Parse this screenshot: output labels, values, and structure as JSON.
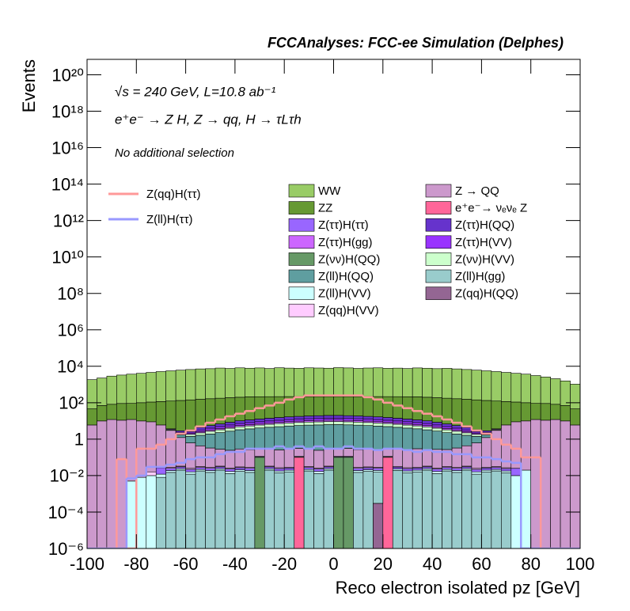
{
  "chart_data": {
    "type": "stacked-histogram",
    "title": "FCCAnalyses: FCC-ee Simulation (Delphes)",
    "annotations": [
      "√s = 240 GeV, L=10.8 ab⁻¹",
      "e⁺e⁻ → Z H, Z → qq, H → τLτh",
      "No additional selection"
    ],
    "xlabel": "Reco electron isolated pz [GeV]",
    "ylabel": "Events",
    "log_y": true,
    "grid": false,
    "xlim": [
      -100,
      100
    ],
    "xticks": [
      -100,
      -80,
      -60,
      -40,
      -20,
      0,
      20,
      40,
      60,
      80,
      100
    ],
    "ylim": [
      1e-06,
      7e+20
    ],
    "yticks": [
      {
        "value": 1e-06,
        "label": "10⁻⁶"
      },
      {
        "value": 0.0001,
        "label": "10⁻⁴"
      },
      {
        "value": 0.01,
        "label": "10⁻²"
      },
      1,
      {
        "value": 100,
        "label": "10²"
      },
      {
        "value": 10000,
        "label": "10⁴"
      },
      {
        "value": 1000000.0,
        "label": "10⁶"
      },
      {
        "value": 100000000.0,
        "label": "10⁸"
      },
      {
        "value": 10000000000.0,
        "label": "10¹⁰"
      },
      {
        "value": 1000000000000.0,
        "label": "10¹²"
      },
      {
        "value": 100000000000000.0,
        "label": "10¹⁴"
      },
      {
        "value": 1e+16,
        "label": "10¹⁶"
      },
      {
        "value": 1e+18,
        "label": "10¹⁸"
      },
      {
        "value": 1e+20,
        "label": "10²⁰"
      }
    ],
    "bins": [
      -100,
      -96,
      -92,
      -88,
      -84,
      -80,
      -76,
      -72,
      -68,
      -64,
      -60,
      -56,
      -52,
      -48,
      -44,
      -40,
      -36,
      -32,
      -28,
      -24,
      -20,
      -16,
      -12,
      -8,
      -4,
      0,
      4,
      8,
      12,
      16,
      20,
      24,
      28,
      32,
      36,
      40,
      44,
      48,
      52,
      56,
      60,
      64,
      68,
      72,
      76,
      80,
      84,
      88,
      92,
      96,
      100
    ],
    "series": [
      {
        "name": "Z(qq)H(QQ)",
        "color": "#946693",
        "histtype": "stepfilled",
        "values": [
          0,
          0,
          0,
          0,
          0,
          0,
          0,
          0,
          0,
          0,
          0,
          0,
          0,
          0,
          0,
          0,
          0,
          0,
          0,
          0,
          0,
          0,
          0,
          0,
          0,
          0,
          0,
          0,
          0,
          0.0003,
          0,
          0,
          0,
          0,
          0,
          0,
          0,
          0,
          0,
          0,
          0,
          0,
          0,
          0,
          0,
          0,
          0,
          0,
          0,
          0
        ]
      },
      {
        "name": "Z(νν)H(QQ)",
        "color": "#669966",
        "histtype": "stepfilled",
        "values": [
          0,
          0,
          0,
          0,
          0,
          0,
          0,
          0,
          0,
          0,
          0,
          0,
          0,
          0,
          0,
          0,
          0,
          0.1,
          0,
          0,
          0,
          0,
          0,
          0,
          0,
          0.1,
          0.1,
          0,
          0,
          0,
          0,
          0,
          0,
          0,
          0,
          0,
          0,
          0,
          0,
          0,
          0,
          0,
          0,
          0,
          0,
          0,
          0,
          0,
          0,
          0
        ]
      },
      {
        "name": "e⁺e⁻→ νₑνₑ Z",
        "color": "#ff6699",
        "histtype": "stepfilled",
        "values": [
          0,
          0,
          0,
          0,
          0,
          0,
          0,
          0,
          0,
          0,
          0,
          0,
          0,
          0,
          0,
          0,
          0,
          0,
          0,
          0,
          0,
          0.1,
          0,
          0,
          0,
          0,
          0,
          0,
          0,
          0,
          0.1,
          0,
          0,
          0,
          0,
          0,
          0,
          0,
          0,
          0,
          0,
          0,
          0,
          0,
          0,
          0,
          0,
          0,
          0,
          0
        ]
      },
      {
        "name": "Z(ll)H(gg)",
        "color": "#99cccc",
        "histtype": "stepfilled",
        "values": [
          0,
          0,
          0,
          0,
          0,
          0,
          0,
          0.008,
          0.015,
          0.02,
          0.012,
          0.018,
          0.015,
          0.02,
          0.013,
          0.017,
          0.015,
          0,
          0.02,
          0.014,
          0.016,
          0,
          0.018,
          0.013,
          0.02,
          0,
          0,
          0.015,
          0.017,
          0.015,
          0,
          0.019,
          0.014,
          0.016,
          0.02,
          0.013,
          0.018,
          0.015,
          0.02,
          0.012,
          0.016,
          0.018,
          0.014,
          0,
          0,
          0,
          0,
          0,
          0,
          0
        ]
      },
      {
        "name": "Z(ll)H(VV)",
        "color": "#ccffff",
        "histtype": "stepfilled",
        "values": [
          0,
          0,
          0,
          0,
          0.005,
          0.008,
          0.01,
          0.004,
          0.004,
          0.004,
          0.004,
          0.004,
          0.004,
          0.004,
          0.004,
          0.004,
          0.004,
          0.004,
          0.004,
          0.004,
          0.004,
          0.004,
          0.004,
          0.004,
          0.004,
          0.004,
          0.004,
          0.004,
          0.004,
          0.004,
          0.004,
          0.004,
          0.004,
          0.004,
          0.004,
          0.004,
          0.004,
          0.004,
          0.004,
          0.004,
          0.004,
          0.004,
          0.004,
          0.01,
          0.02,
          0,
          0,
          0,
          0,
          0
        ]
      },
      {
        "name": "Z(ττ)H(ττ)",
        "color": "#9966ff",
        "histtype": "stepfilled",
        "values": [
          0,
          0,
          0,
          0,
          0,
          0,
          0,
          0.015,
          0.006,
          0.006,
          0.006,
          0.006,
          0.006,
          0.006,
          0.006,
          0.006,
          0.006,
          0.006,
          0.006,
          0.006,
          0.006,
          0.006,
          0.006,
          0.006,
          0.006,
          0.006,
          0.006,
          0.006,
          0.006,
          0.006,
          0.006,
          0.006,
          0.006,
          0.006,
          0.006,
          0.006,
          0.006,
          0.006,
          0.006,
          0.006,
          0.006,
          0.006,
          0.006,
          0.015,
          0,
          0,
          0,
          0,
          0,
          0
        ]
      },
      {
        "name": "Z(qq)H(VV)",
        "color": "#ffccff",
        "histtype": "stepfilled",
        "values": [
          0,
          0,
          0,
          0,
          0,
          0,
          0.006,
          0,
          0.003,
          0.003,
          0.003,
          0.003,
          0.003,
          0.003,
          0.003,
          0.003,
          0.003,
          0.003,
          0.003,
          0.003,
          0.003,
          0.003,
          0.003,
          0.003,
          0.003,
          0.003,
          0.003,
          0.003,
          0.003,
          0.003,
          0.003,
          0.003,
          0.003,
          0.003,
          0.003,
          0.003,
          0.003,
          0.003,
          0.003,
          0.003,
          0.003,
          0.003,
          0.003,
          0,
          0,
          0,
          0,
          0,
          0,
          0
        ]
      },
      {
        "name": "Z → QQ",
        "color": "#cc99cc",
        "histtype": "stepfilled",
        "values": [
          6,
          10,
          12,
          11,
          12,
          10,
          9,
          6,
          3,
          1.2,
          0.6,
          0.4,
          0.3,
          0.25,
          0.22,
          0.26,
          0.24,
          0.2,
          0.27,
          0.23,
          0.25,
          0.2,
          0.26,
          0.22,
          0.25,
          0.2,
          0.2,
          0.24,
          0.26,
          0.22,
          0.2,
          0.25,
          0.23,
          0.27,
          0.22,
          0.25,
          0.24,
          0.3,
          0.4,
          0.6,
          1.2,
          3,
          6,
          9,
          10,
          12,
          11,
          12,
          10,
          6
        ]
      },
      {
        "name": "Z(ll)H(QQ)",
        "color": "#5f9ea0",
        "histtype": "stepfilled",
        "values": [
          0,
          0,
          0,
          0,
          0,
          0,
          0,
          0,
          0.2,
          0.5,
          0.8,
          1.2,
          1.6,
          2.0,
          2.5,
          3.0,
          3.4,
          3.8,
          4.2,
          4.6,
          5.0,
          5.3,
          5.6,
          5.8,
          6.0,
          6.0,
          5.8,
          5.6,
          5.3,
          5.0,
          4.6,
          4.2,
          3.8,
          3.4,
          3.0,
          2.5,
          2.0,
          1.6,
          1.2,
          0.8,
          0.5,
          0.2,
          0,
          0,
          0,
          0,
          0,
          0,
          0,
          0
        ]
      },
      {
        "name": "Z(νν)H(VV)",
        "color": "#ccffcc",
        "histtype": "stepfilled",
        "values": [
          0,
          0,
          0,
          0,
          0,
          0,
          0,
          0,
          0.1,
          0.25,
          0.4,
          0.6,
          0.8,
          1.0,
          1.25,
          1.5,
          1.7,
          1.9,
          2.1,
          2.3,
          2.5,
          2.65,
          2.8,
          2.9,
          3.0,
          3.0,
          2.9,
          2.8,
          2.65,
          2.5,
          2.3,
          2.1,
          1.9,
          1.7,
          1.5,
          1.25,
          1.0,
          0.8,
          0.6,
          0.4,
          0.25,
          0.1,
          0,
          0,
          0,
          0,
          0,
          0,
          0,
          0
        ]
      },
      {
        "name": "Z(ττ)H(gg)",
        "color": "#cc66ff",
        "histtype": "stepfilled",
        "values": [
          0,
          0,
          0,
          0,
          0,
          0,
          0,
          0,
          0.06,
          0.15,
          0.24,
          0.36,
          0.48,
          0.6,
          0.75,
          0.9,
          1.02,
          1.14,
          1.26,
          1.38,
          1.5,
          1.59,
          1.68,
          1.74,
          1.8,
          1.8,
          1.74,
          1.68,
          1.59,
          1.5,
          1.38,
          1.26,
          1.14,
          1.02,
          0.9,
          0.75,
          0.6,
          0.48,
          0.36,
          0.24,
          0.15,
          0.06,
          0,
          0,
          0,
          0,
          0,
          0,
          0,
          0
        ]
      },
      {
        "name": "Z(ττ)H(VV)",
        "color": "#9933ff",
        "histtype": "stepfilled",
        "values": [
          0,
          0,
          0,
          0,
          0,
          0,
          0,
          0,
          0.1,
          0.25,
          0.4,
          0.6,
          0.8,
          1.0,
          1.25,
          1.5,
          1.7,
          1.9,
          2.1,
          2.3,
          2.5,
          2.65,
          2.8,
          2.9,
          3.0,
          3.0,
          2.9,
          2.8,
          2.65,
          2.5,
          2.3,
          2.1,
          1.9,
          1.7,
          1.5,
          1.25,
          1.0,
          0.8,
          0.6,
          0.4,
          0.25,
          0.1,
          0,
          0,
          0,
          0,
          0,
          0,
          0,
          0
        ]
      },
      {
        "name": "Z(ττ)H(QQ)",
        "color": "#6633cc",
        "histtype": "stepfilled",
        "values": [
          0,
          0,
          0,
          0,
          0,
          0,
          0,
          0,
          0.2,
          0.5,
          0.8,
          1.2,
          1.6,
          2.0,
          2.5,
          3.0,
          3.4,
          3.8,
          4.2,
          4.6,
          5.0,
          5.3,
          5.6,
          5.8,
          6.0,
          6.0,
          5.8,
          5.6,
          5.3,
          5.0,
          4.6,
          4.2,
          3.8,
          3.4,
          3.0,
          2.5,
          2.0,
          1.6,
          1.2,
          0.8,
          0.5,
          0.2,
          0,
          0,
          0,
          0,
          0,
          0,
          0,
          0
        ]
      },
      {
        "name": "ZZ",
        "color": "#669933",
        "histtype": "stepfilled",
        "values": [
          40,
          60,
          70,
          80,
          80,
          90,
          100,
          110,
          120,
          130,
          140,
          150,
          160,
          170,
          180,
          190,
          200,
          200,
          200,
          200,
          200,
          200,
          200,
          200,
          200,
          200,
          200,
          200,
          200,
          200,
          200,
          200,
          200,
          200,
          190,
          180,
          170,
          160,
          150,
          140,
          130,
          120,
          110,
          100,
          90,
          80,
          80,
          70,
          60,
          40
        ]
      },
      {
        "name": "WW",
        "color": "#99cc66",
        "histtype": "stepfilled",
        "values": [
          1800,
          2200,
          2800,
          3200,
          3600,
          4000,
          4500,
          5000,
          5500,
          6000,
          6500,
          7000,
          7200,
          7800,
          7400,
          8000,
          7600,
          7900,
          7300,
          8100,
          7700,
          7500,
          8000,
          7800,
          7600,
          8200,
          7900,
          7400,
          7800,
          8000,
          7500,
          7700,
          7300,
          7900,
          7600,
          7200,
          7500,
          7000,
          6500,
          6000,
          5500,
          5000,
          4500,
          4000,
          3600,
          3000,
          2500,
          2000,
          1500,
          1000
        ]
      },
      {
        "name": "Z(qq)H(ττ)",
        "color": "#ff9999",
        "histtype": "step",
        "values": [
          0,
          0,
          0,
          0.08,
          0,
          0.3,
          0.3,
          0.5,
          1,
          2,
          3,
          5,
          8,
          12,
          18,
          25,
          35,
          50,
          70,
          100,
          150,
          200,
          250,
          250,
          250,
          250,
          250,
          250,
          200,
          150,
          100,
          70,
          50,
          35,
          25,
          18,
          12,
          8,
          5,
          3,
          2,
          1,
          0.5,
          0.3,
          0.1,
          0.1,
          0,
          0,
          0,
          0
        ]
      },
      {
        "name": "Z(ll)H(ττ)",
        "color": "#9999ff",
        "histtype": "step",
        "values": [
          0,
          0,
          0,
          0,
          0.007,
          0.01,
          0.03,
          0.03,
          0.04,
          0.05,
          0.08,
          0.1,
          0.1,
          0.15,
          0.2,
          0.2,
          0.3,
          0.3,
          0.3,
          0.4,
          0.3,
          0.4,
          0.3,
          0.4,
          0.3,
          0.3,
          0.4,
          0.3,
          0.3,
          0.25,
          0.3,
          0.3,
          0.25,
          0.2,
          0.25,
          0.2,
          0.2,
          0.15,
          0.15,
          0.1,
          0.1,
          0.08,
          0.06,
          0.05,
          0,
          0,
          0,
          0,
          0,
          0
        ]
      }
    ]
  }
}
